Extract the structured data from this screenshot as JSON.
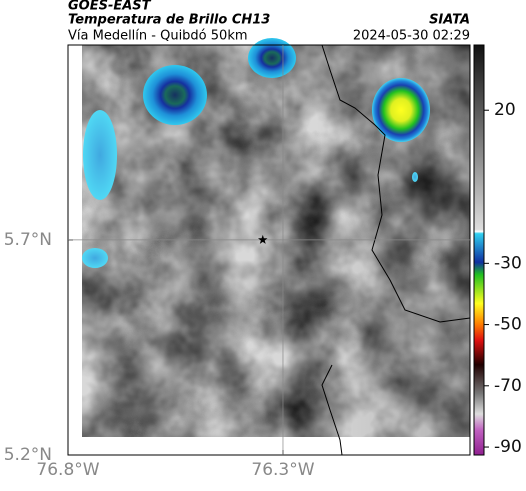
{
  "header": {
    "source": "GOES-EAST",
    "title": "Temperatura de Brillo CH13",
    "subtitle": "Vía Medellín - Quibdó 50km",
    "org": "SIATA",
    "timestamp": "2024-05-30 02:29"
  },
  "map": {
    "xlim": [
      -76.8,
      -75.865
    ],
    "ylim": [
      5.2,
      6.153
    ],
    "xticks": [
      {
        "value": -76.8,
        "label": "76.8°W"
      },
      {
        "value": -76.3,
        "label": "76.3°W"
      }
    ],
    "yticks": [
      {
        "value": 5.2,
        "label": "5.2°N"
      },
      {
        "value": 5.7,
        "label": "5.7°N"
      }
    ],
    "marker": {
      "lon": -76.347,
      "lat": 5.7
    }
  },
  "colorbar": {
    "lim": [
      -92.6,
      41.3
    ],
    "ticks": [
      20,
      -30,
      -50,
      -70,
      -90
    ]
  }
}
